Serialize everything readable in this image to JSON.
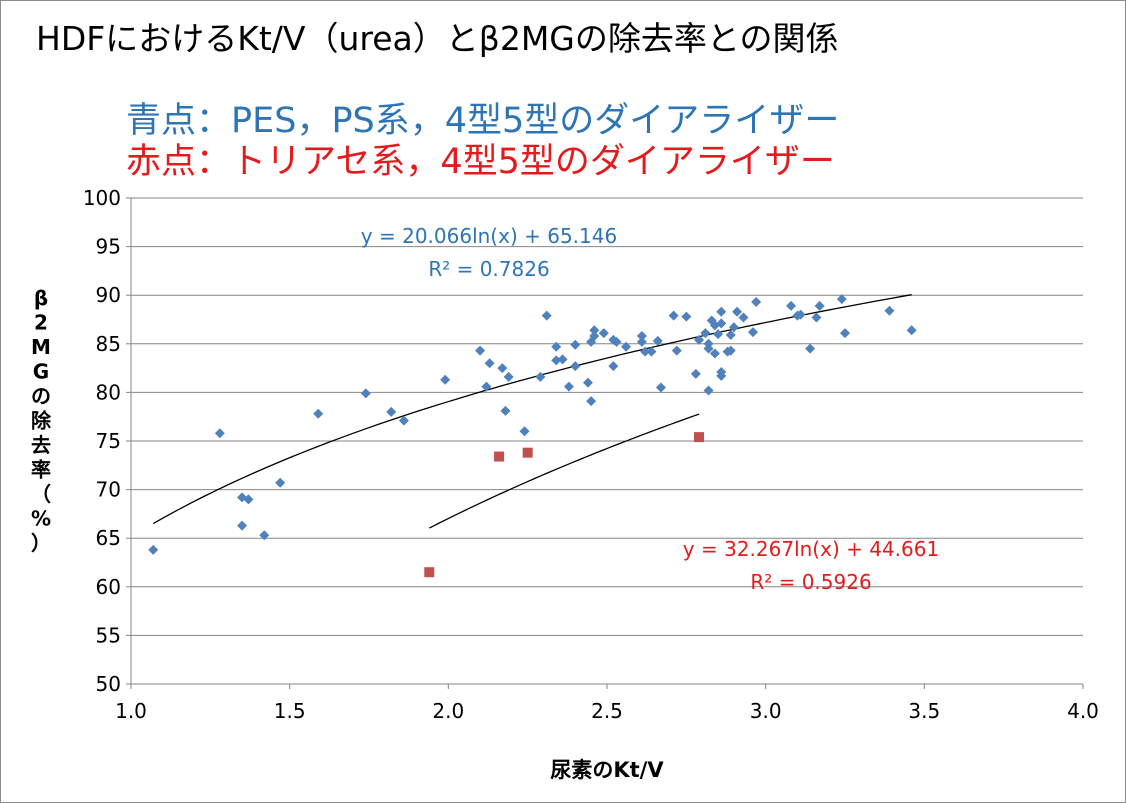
{
  "chart_data": {
    "type": "scatter",
    "title": "HDFにおけるKt/V（urea）とβ2MGの除去率との関係",
    "subtitle_lines": [
      {
        "prefix": "青点：",
        "text": "PES，PS系，4型5型のダイアライザー",
        "color": "#2e75b6"
      },
      {
        "prefix": "赤点：",
        "text": "トリアセ系，4型5型のダイアライザー",
        "color": "#e41a1c"
      }
    ],
    "xlabel": "尿素のKt/V",
    "ylabel": "β2MGの除去率（%）",
    "xlim": [
      1.0,
      4.0
    ],
    "ylim": [
      50,
      100
    ],
    "x_ticks": [
      "1.0",
      "1.5",
      "2.0",
      "2.5",
      "3.0",
      "3.5",
      "4.0"
    ],
    "y_ticks": [
      "50",
      "55",
      "60",
      "65",
      "70",
      "75",
      "80",
      "85",
      "90",
      "95",
      "100"
    ],
    "grid": "horizontal",
    "series": [
      {
        "color": "#4f81bd",
        "marker": "diamond",
        "points": [
          [
            1.07,
            63.8
          ],
          [
            1.28,
            75.8
          ],
          [
            1.35,
            69.2
          ],
          [
            1.35,
            66.3
          ],
          [
            1.37,
            69.0
          ],
          [
            1.42,
            65.3
          ],
          [
            1.47,
            70.7
          ],
          [
            1.59,
            77.8
          ],
          [
            1.74,
            79.9
          ],
          [
            1.82,
            78.0
          ],
          [
            1.86,
            77.1
          ],
          [
            1.99,
            81.3
          ],
          [
            2.1,
            84.3
          ],
          [
            2.12,
            80.6
          ],
          [
            2.13,
            83.0
          ],
          [
            2.17,
            82.5
          ],
          [
            2.18,
            78.1
          ],
          [
            2.19,
            81.6
          ],
          [
            2.24,
            76.0
          ],
          [
            2.29,
            81.6
          ],
          [
            2.31,
            87.9
          ],
          [
            2.34,
            84.7
          ],
          [
            2.34,
            83.3
          ],
          [
            2.36,
            83.4
          ],
          [
            2.38,
            80.6
          ],
          [
            2.4,
            82.7
          ],
          [
            2.4,
            84.9
          ],
          [
            2.44,
            81.0
          ],
          [
            2.45,
            79.1
          ],
          [
            2.45,
            85.2
          ],
          [
            2.46,
            85.8
          ],
          [
            2.46,
            86.4
          ],
          [
            2.49,
            86.1
          ],
          [
            2.52,
            82.7
          ],
          [
            2.52,
            85.4
          ],
          [
            2.53,
            85.2
          ],
          [
            2.56,
            84.7
          ],
          [
            2.61,
            85.8
          ],
          [
            2.61,
            85.2
          ],
          [
            2.62,
            84.2
          ],
          [
            2.64,
            84.2
          ],
          [
            2.66,
            85.3
          ],
          [
            2.67,
            80.5
          ],
          [
            2.71,
            87.9
          ],
          [
            2.72,
            84.3
          ],
          [
            2.75,
            87.8
          ],
          [
            2.78,
            81.9
          ],
          [
            2.79,
            85.4
          ],
          [
            2.81,
            86.1
          ],
          [
            2.82,
            85.0
          ],
          [
            2.82,
            80.2
          ],
          [
            2.82,
            84.5
          ],
          [
            2.83,
            87.4
          ],
          [
            2.84,
            84.0
          ],
          [
            2.84,
            86.9
          ],
          [
            2.85,
            86.0
          ],
          [
            2.86,
            87.1
          ],
          [
            2.86,
            81.7
          ],
          [
            2.86,
            82.1
          ],
          [
            2.86,
            88.3
          ],
          [
            2.88,
            84.2
          ],
          [
            2.89,
            84.3
          ],
          [
            2.89,
            85.9
          ],
          [
            2.9,
            86.7
          ],
          [
            2.91,
            88.3
          ],
          [
            2.93,
            87.7
          ],
          [
            2.96,
            86.2
          ],
          [
            2.97,
            89.3
          ],
          [
            3.08,
            88.9
          ],
          [
            3.1,
            87.9
          ],
          [
            3.11,
            88.0
          ],
          [
            3.14,
            84.5
          ],
          [
            3.16,
            87.7
          ],
          [
            3.17,
            88.9
          ],
          [
            3.24,
            89.6
          ],
          [
            3.25,
            86.1
          ],
          [
            3.39,
            88.4
          ],
          [
            3.46,
            86.4
          ]
        ],
        "trendline": {
          "type": "logarithmic",
          "a": 20.066,
          "b": 65.146,
          "x_range": [
            1.07,
            3.46
          ],
          "equation": "y = 20.066ln(x) + 65.146",
          "r2": "R² = 0.7826",
          "label_color": "#2e75b6"
        }
      },
      {
        "color": "#c0504d",
        "marker": "square",
        "points": [
          [
            1.94,
            61.5
          ],
          [
            2.16,
            73.4
          ],
          [
            2.25,
            73.8
          ],
          [
            2.79,
            75.4
          ]
        ],
        "trendline": {
          "type": "logarithmic",
          "a": 32.267,
          "b": 44.661,
          "x_range": [
            1.94,
            2.79
          ],
          "equation": "y = 32.267ln(x) + 44.661",
          "r2": "R² = 0.5926",
          "label_color": "#e41a1c"
        }
      }
    ]
  }
}
